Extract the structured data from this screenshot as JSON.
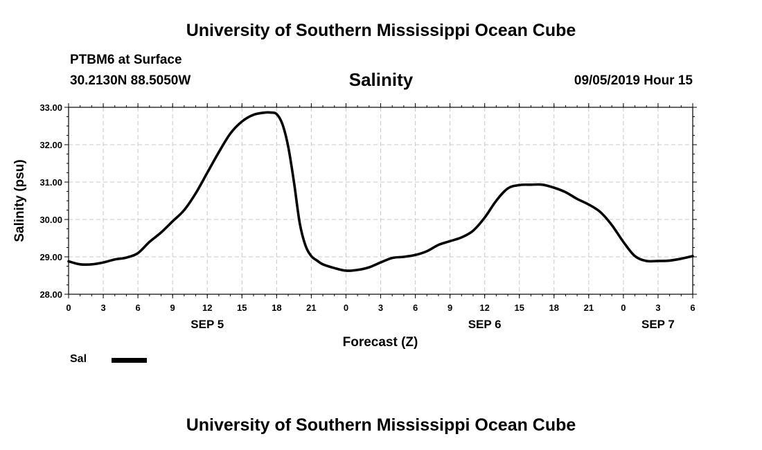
{
  "header": {
    "title": "University of Southern Mississippi Ocean Cube",
    "station": "PTBM6 at Surface",
    "coords": "30.2130N 88.5050W",
    "datetime": "09/05/2019 Hour 15"
  },
  "footer": {
    "title": "University of Southern Mississippi Ocean Cube"
  },
  "chart_data": {
    "type": "line",
    "title": "Salinity",
    "xlabel": "Forecast (Z)",
    "ylabel": "Salinity (psu)",
    "ylim": [
      28.0,
      33.0
    ],
    "yticks": [
      "28.00",
      "29.00",
      "30.00",
      "31.00",
      "32.00",
      "33.00"
    ],
    "xlim_hours": [
      0,
      54
    ],
    "xtick_labels": [
      "0",
      "3",
      "6",
      "9",
      "12",
      "15",
      "18",
      "21",
      "0",
      "3",
      "6",
      "9",
      "12",
      "15",
      "18",
      "21",
      "0",
      "3",
      "6"
    ],
    "day_labels": [
      {
        "label": "SEP 5",
        "hour": 12
      },
      {
        "label": "SEP 6",
        "hour": 36
      },
      {
        "label": "SEP 7",
        "hour": 51
      }
    ],
    "grid": true,
    "legend_position": "bottom-left",
    "series": [
      {
        "name": "Sal",
        "color": "#000000",
        "x_hours": [
          0,
          1,
          2,
          3,
          4,
          5,
          6,
          7,
          8,
          9,
          10,
          11,
          12,
          13,
          14,
          15,
          16,
          17,
          17.5,
          18,
          18.5,
          19,
          19.5,
          20,
          20.5,
          21,
          21.5,
          22,
          23,
          24,
          25,
          26,
          27,
          28,
          29,
          30,
          31,
          32,
          33,
          34,
          35,
          36,
          37,
          38,
          39,
          40,
          41,
          42,
          43,
          44,
          45,
          46,
          47,
          48,
          49,
          50,
          51,
          52,
          53,
          54
        ],
        "values": [
          28.88,
          28.8,
          28.8,
          28.85,
          28.93,
          28.98,
          29.1,
          29.4,
          29.65,
          29.95,
          30.25,
          30.7,
          31.25,
          31.8,
          32.3,
          32.62,
          32.8,
          32.86,
          32.86,
          32.82,
          32.55,
          31.95,
          31.0,
          29.9,
          29.3,
          29.02,
          28.9,
          28.8,
          28.7,
          28.63,
          28.65,
          28.72,
          28.85,
          28.97,
          29.0,
          29.05,
          29.15,
          29.32,
          29.42,
          29.52,
          29.7,
          30.05,
          30.5,
          30.83,
          30.92,
          30.93,
          30.93,
          30.85,
          30.73,
          30.55,
          30.4,
          30.2,
          29.85,
          29.4,
          29.02,
          28.89,
          28.89,
          28.9,
          28.95,
          29.02
        ]
      }
    ]
  }
}
